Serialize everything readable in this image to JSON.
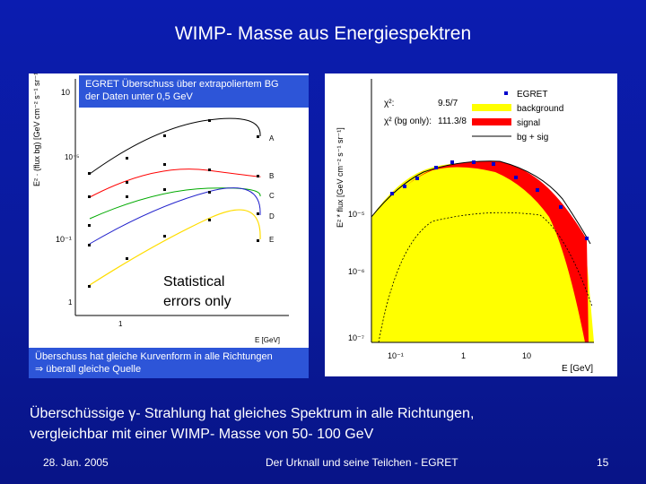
{
  "title": "WIMP- Masse aus Energiespektren",
  "left_note": {
    "line1": "EGRET Überschuss über extrapoliertem BG",
    "line2": "der Daten unter 0,5 GeV"
  },
  "bottom_note": {
    "line1": "Überschuss hat gleiche Kurvenform in alle Richtungen",
    "line2_arrow": "⇒",
    "line2": " überall gleiche Quelle"
  },
  "stat_note": {
    "line1": "Statistical",
    "line2": "errors only"
  },
  "caption": {
    "line1_pre": "Überschüssige ",
    "line1_gamma": "γ",
    "line1_post": "- Strahlung hat gleiches Spektrum in alle Richtungen,",
    "line2": "vergleichbar mit einer WIMP- Masse von 50- 100 GeV"
  },
  "footer": {
    "date": "28. Jan. 2005",
    "center": "Der Urknall und seine Teilchen - EGRET",
    "page": "15"
  },
  "colors": {
    "background": "#0a1aa0",
    "note_box": "#2d55d8",
    "signal": "#ff0000",
    "background_fill": "#ffff00"
  },
  "chart_data": [
    {
      "type": "line",
      "ylabel": "E² · (flux bg) [GeV cm⁻² s⁻¹ sr⁻¹]",
      "xlabel": "E [GeV]",
      "yticks": [
        "10",
        "10⁻⁵",
        "10⁻¹",
        "1"
      ],
      "xticks": [
        "1"
      ],
      "series": [
        {
          "name": "A",
          "color": "#000000"
        },
        {
          "name": "B",
          "color": "#ff0000"
        },
        {
          "name": "C",
          "color": "#00aa00"
        },
        {
          "name": "D",
          "color": "#2222cc"
        },
        {
          "name": "E",
          "color": "#ffdd00"
        }
      ]
    },
    {
      "type": "area",
      "ylabel": "E² * flux [GeV cm⁻² s⁻¹ sr⁻¹]",
      "xlabel": "E [GeV]",
      "yticks": [
        "10⁻⁵",
        "10⁻⁶",
        "10⁻⁷"
      ],
      "xticks": [
        "10⁻¹",
        "1",
        "10"
      ],
      "legend": [
        {
          "label": "EGRET",
          "color": "#0000cc"
        },
        {
          "label": "background",
          "color": "#ffff00"
        },
        {
          "label": "signal",
          "color": "#ff0000"
        },
        {
          "label": "bg + sig",
          "color": "#000000"
        }
      ],
      "chi2": {
        "label1": "χ²:",
        "value1": "9.5/7",
        "label2": "χ² (bg only):",
        "value2": "111.3/8"
      }
    }
  ]
}
